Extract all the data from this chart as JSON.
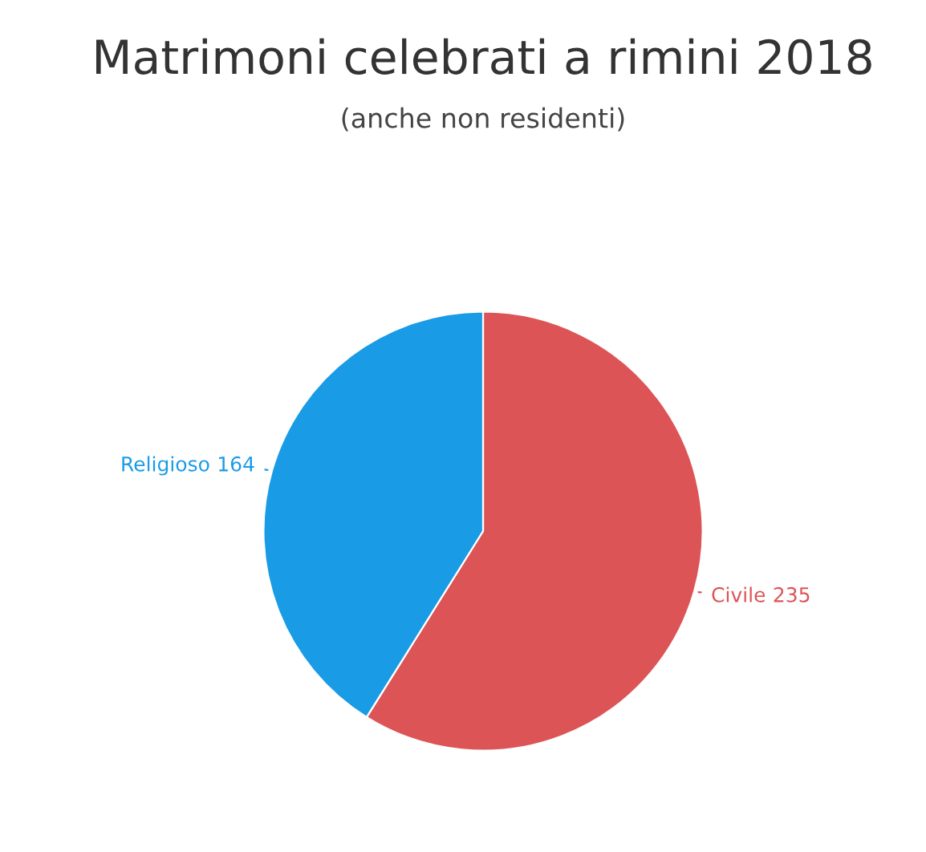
{
  "chart_data": {
    "type": "pie",
    "title": "Matrimoni celebrati a rimini 2018",
    "subtitle": "(anche non residenti)",
    "categories": [
      "Civile",
      "Religioso"
    ],
    "values": [
      235,
      164
    ],
    "colors": [
      "#dc5456",
      "#1a9be6"
    ],
    "value_labels": [
      "235",
      "164"
    ]
  }
}
